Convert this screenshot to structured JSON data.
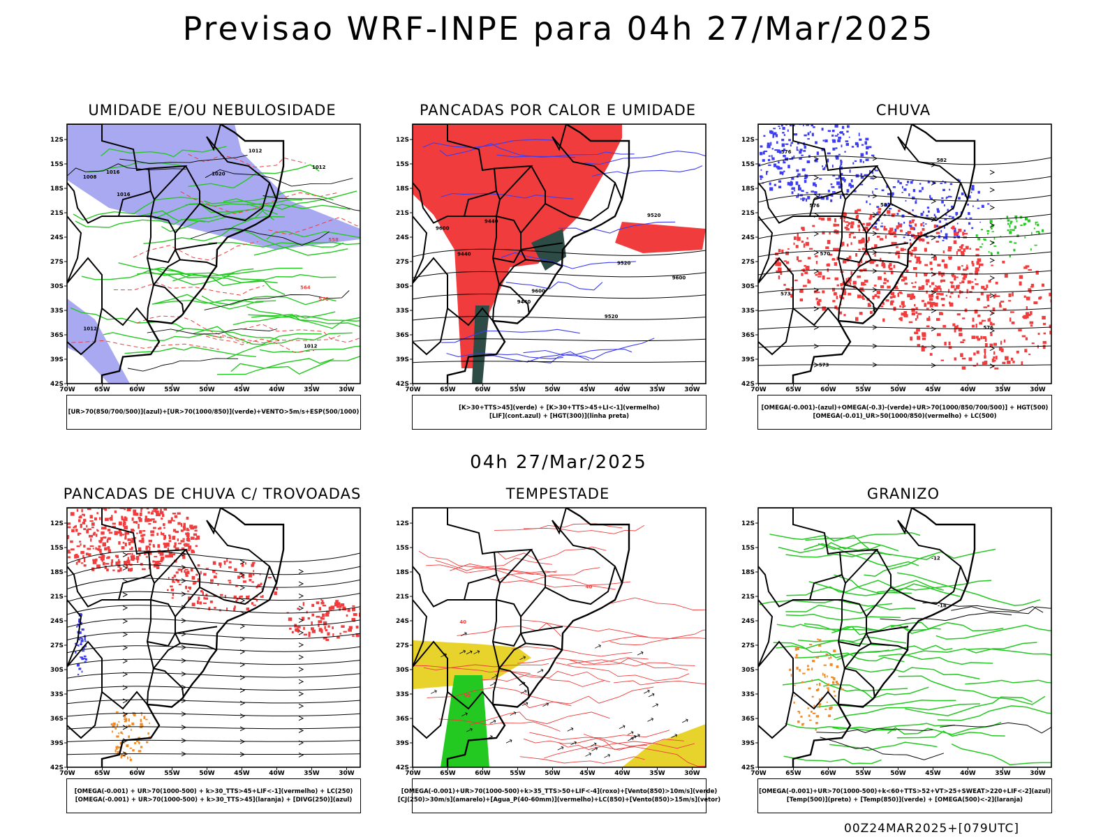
{
  "title": "Previsao WRF-INPE  para 04h 27/Mar/2025",
  "mid_title": "04h 27/Mar/2025",
  "footer": "00Z24MAR2025+[079UTC]",
  "lat_labels": [
    "12S",
    "15S",
    "18S",
    "21S",
    "24S",
    "27S",
    "30S",
    "33S",
    "36S",
    "39S",
    "42S"
  ],
  "lon_labels": [
    "70W",
    "65W",
    "60W",
    "55W",
    "50W",
    "45W",
    "40W",
    "35W",
    "30W"
  ],
  "colors": {
    "red": "#f03c3c",
    "blue": "#3c3cf0",
    "green": "#23c820",
    "lavender": "#9a9af0",
    "darkgreen": "#2e4c46",
    "yellow": "#e8d32c",
    "orange": "#f08a24"
  },
  "panels": [
    {
      "title": "UMIDADE E/OU NEBULOSIDADE",
      "legend": [
        "[UR>70(850/700/500)](azul)+[UR>70(1000/850)](verde)+VENTO>5m/s+ESP(500/1000)"
      ],
      "contour_labels": [
        "1012",
        "1012",
        "1012",
        "1020",
        "1008",
        "1016",
        "1016",
        "1012",
        "570",
        "564",
        "558"
      ]
    },
    {
      "title": "PANCADAS POR CALOR E UMIDADE",
      "legend": [
        "[K>30+TTS>45](verde) + [K>30+TTS>45+LI<-1](vermelho)",
        "[LIF](cont.azul) + [HGT(300)](linha preta)"
      ],
      "contour_labels": [
        "9600",
        "9600",
        "9520",
        "9440",
        "9520",
        "9440",
        "9600",
        "9520",
        "9440"
      ]
    },
    {
      "title": "CHUVA",
      "legend": [
        "[OMEGA(-0.001)-(azul)+OMEGA(-0.3)-(verde)+UR>70(1000/850/700/500)] + HGT(500)",
        "[OMEGA(-0.01)_UR>50(1000/850)(vermelho) + LC(500)"
      ],
      "contour_labels": [
        "582",
        "582",
        "576",
        "576",
        "576",
        "573",
        "570",
        "573"
      ]
    },
    {
      "title": "PANCADAS DE CHUVA C/ TROVOADAS",
      "legend": [
        "[OMEGA(-0.001) + UR>70(1000-500) + k>30_TTS>45+LIF<-1](vermelho) + LC(250)",
        "[OMEGA(-0.001) + UR>70(1000-500) + k>30_TTS>45](laranja) + [DIVG(250)](azul)"
      ],
      "contour_labels": []
    },
    {
      "title": "TEMPESTADE",
      "legend": [
        "[OMEGA(-0.001)+UR>70(1000-500)+k>35_TTS>50+LIF<-4](roxo)+[Vento(850)>10m/s](verde)",
        "[CJ(250)>30m/s](amarelo)+[Agua_P(40-60mm)](vermelho)+LC(850)+[Vento(850)>15m/s](vetor)"
      ],
      "contour_labels": [
        "50",
        "40",
        "40"
      ]
    },
    {
      "title": "GRANIZO",
      "legend": [
        "[OMEGA(-0.001)+UR>70(1000-500)+k<60+TTS>52+VT>25+SWEAT>220+LIF<-2](azul)",
        "[Temp(500)](preto) + [Temp(850)](verde) + [OMEGA(500)<-2](laranja)"
      ],
      "contour_labels": [
        "-12",
        "-18"
      ]
    }
  ]
}
